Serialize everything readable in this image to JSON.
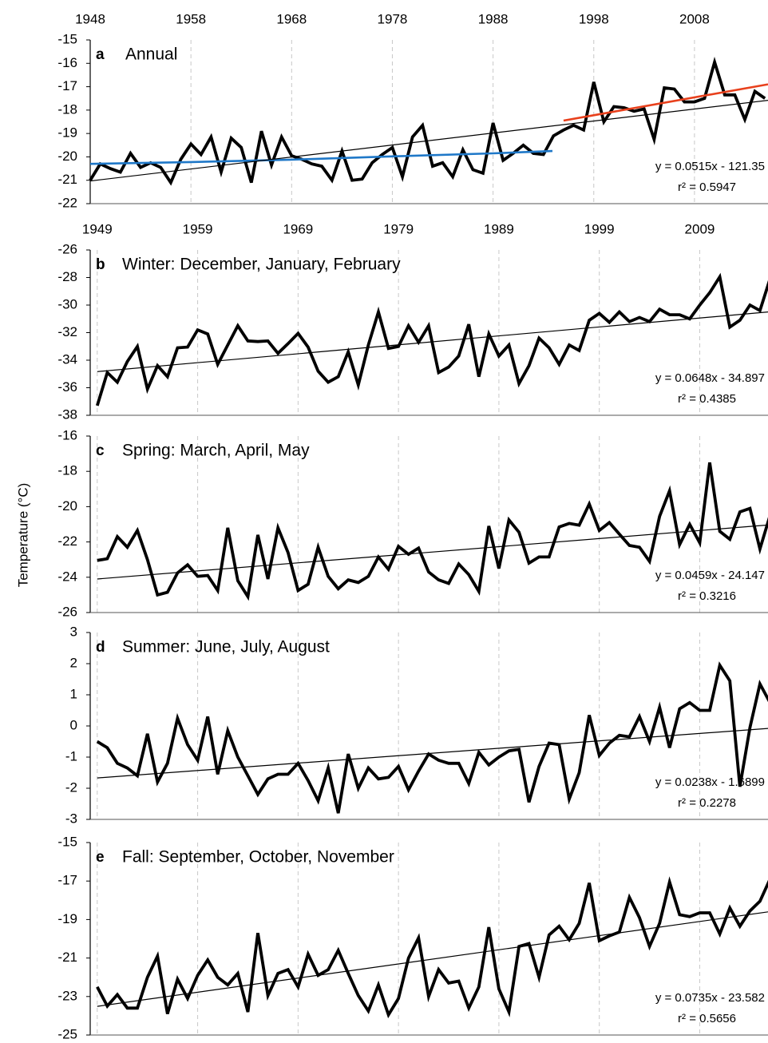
{
  "y_axis_label": "Temperature (°C)",
  "chart_data": [
    {
      "type": "line",
      "label": "a",
      "title": "Annual",
      "xlim": [
        1948,
        2015.3
      ],
      "xticks": [
        1948,
        1958,
        1968,
        1978,
        1988,
        1998,
        2008
      ],
      "ylim": [
        -22,
        -15
      ],
      "yticks": [
        -22,
        -21,
        -20,
        -19,
        -18,
        -17,
        -16,
        -15
      ],
      "grid": true,
      "series": [
        {
          "color": "#000000",
          "x": [
            1948,
            1949,
            1950,
            1951,
            1952,
            1953,
            1954,
            1955,
            1956,
            1957,
            1958,
            1959,
            1960,
            1961,
            1962,
            1963,
            1964,
            1965,
            1966,
            1967,
            1968,
            1969,
            1970,
            1971,
            1972,
            1973,
            1974,
            1975,
            1976,
            1977,
            1978,
            1979,
            1980,
            1981,
            1982,
            1983,
            1984,
            1985,
            1986,
            1987,
            1988,
            1989,
            1990,
            1991,
            1992,
            1993,
            1994,
            1995,
            1996,
            1997,
            1998,
            1999,
            2000,
            2001,
            2002,
            2003,
            2004,
            2005,
            2006,
            2007,
            2008,
            2009,
            2010,
            2011,
            2012,
            2013,
            2014,
            2015
          ],
          "values": [
            -21.0,
            -20.3,
            -20.5,
            -20.65,
            -19.85,
            -20.45,
            -20.25,
            -20.45,
            -21.1,
            -20.1,
            -19.45,
            -19.9,
            -19.15,
            -20.65,
            -19.2,
            -19.6,
            -21.1,
            -18.9,
            -20.35,
            -19.15,
            -19.95,
            -20.1,
            -20.3,
            -20.4,
            -21.0,
            -19.75,
            -21.0,
            -20.95,
            -20.25,
            -19.9,
            -19.6,
            -20.85,
            -19.15,
            -18.65,
            -20.4,
            -20.25,
            -20.85,
            -19.7,
            -20.55,
            -20.7,
            -18.55,
            -20.15,
            -19.85,
            -19.5,
            -19.85,
            -19.9,
            -19.1,
            -18.85,
            -18.65,
            -18.85,
            -16.8,
            -18.5,
            -17.85,
            -17.9,
            -18.05,
            -17.95,
            -19.25,
            -17.05,
            -17.1,
            -17.65,
            -17.65,
            -17.5,
            -15.95,
            -17.35,
            -17.35,
            -18.4,
            -17.2,
            -17.5
          ]
        },
        {
          "color": "#1f78c8",
          "x": [
            1948,
            1958,
            1968,
            1978,
            1988,
            1993.9
          ],
          "values": [
            -20.3,
            -20.22,
            -20.12,
            -19.98,
            -19.85,
            -19.75
          ]
        },
        {
          "color": "#e8401c",
          "x": [
            1995,
            2015.3
          ],
          "values": [
            -18.45,
            -16.9
          ]
        },
        {
          "color": "#000000",
          "x": [
            1948,
            2015.3
          ],
          "values": [
            -21.03,
            -17.58
          ],
          "equation": "y = 0.0515x - 121.35",
          "r2": "r² = 0.5947"
        }
      ]
    },
    {
      "type": "line",
      "label": "b",
      "title": "Winter: December, January, February",
      "xlim": [
        1948.3,
        2015.8
      ],
      "xticks": [
        1949,
        1959,
        1969,
        1979,
        1989,
        1999,
        2009
      ],
      "ylim": [
        -38,
        -26
      ],
      "yticks": [
        -38,
        -36,
        -34,
        -32,
        -30,
        -28,
        -26
      ],
      "grid": true,
      "series": [
        {
          "color": "#000000",
          "x": [
            1949,
            1950,
            1951,
            1952,
            1953,
            1954,
            1955,
            1956,
            1957,
            1958,
            1959,
            1960,
            1961,
            1962,
            1963,
            1964,
            1965,
            1966,
            1967,
            1968,
            1969,
            1970,
            1971,
            1972,
            1973,
            1974,
            1975,
            1976,
            1977,
            1978,
            1979,
            1980,
            1981,
            1982,
            1983,
            1984,
            1985,
            1986,
            1987,
            1988,
            1989,
            1990,
            1991,
            1992,
            1993,
            1994,
            1995,
            1996,
            1997,
            1998,
            1999,
            2000,
            2001,
            2002,
            2003,
            2004,
            2005,
            2006,
            2007,
            2008,
            2009,
            2010,
            2011,
            2012,
            2013,
            2014,
            2015,
            2016
          ],
          "values": [
            -37.3,
            -34.9,
            -35.6,
            -34.1,
            -33.0,
            -36.1,
            -34.4,
            -35.2,
            -33.1,
            -33.05,
            -31.8,
            -32.1,
            -34.3,
            -32.9,
            -31.5,
            -32.6,
            -32.65,
            -32.6,
            -33.5,
            -32.8,
            -32.05,
            -33.05,
            -34.8,
            -35.6,
            -35.2,
            -33.4,
            -35.8,
            -32.9,
            -30.5,
            -33.15,
            -33.0,
            -31.5,
            -32.7,
            -31.5,
            -34.9,
            -34.5,
            -33.7,
            -31.4,
            -35.2,
            -32.1,
            -33.7,
            -32.9,
            -35.7,
            -34.4,
            -32.4,
            -33.1,
            -34.3,
            -32.9,
            -33.3,
            -31.1,
            -30.6,
            -31.25,
            -30.5,
            -31.2,
            -30.9,
            -31.2,
            -30.3,
            -30.7,
            -30.7,
            -31.0,
            -30.0,
            -29.1,
            -27.95,
            -31.6,
            -31.1,
            -30.0,
            -30.4,
            -28.1
          ]
        },
        {
          "color": "#000000",
          "x": [
            1949,
            2015.8
          ],
          "values": [
            -34.83,
            -30.5
          ],
          "equation": "y = 0.0648x - 34.897",
          "r2": "r² = 0.4385"
        }
      ]
    },
    {
      "type": "line",
      "label": "c",
      "title": "Spring: March, April, May",
      "xlim": [
        1948.3,
        2015.8
      ],
      "ylim": [
        -26,
        -16
      ],
      "yticks": [
        -26,
        -24,
        -22,
        -20,
        -18,
        -16
      ],
      "grid": true,
      "series": [
        {
          "color": "#000000",
          "x": [
            1949,
            1950,
            1951,
            1952,
            1953,
            1954,
            1955,
            1956,
            1957,
            1958,
            1959,
            1960,
            1961,
            1962,
            1963,
            1964,
            1965,
            1966,
            1967,
            1968,
            1969,
            1970,
            1971,
            1972,
            1973,
            1974,
            1975,
            1976,
            1977,
            1978,
            1979,
            1980,
            1981,
            1982,
            1983,
            1984,
            1985,
            1986,
            1987,
            1988,
            1989,
            1990,
            1991,
            1992,
            1993,
            1994,
            1995,
            1996,
            1997,
            1998,
            1999,
            2000,
            2001,
            2002,
            2003,
            2004,
            2005,
            2006,
            2007,
            2008,
            2009,
            2010,
            2011,
            2012,
            2013,
            2014,
            2015,
            2016
          ],
          "values": [
            -23.05,
            -22.95,
            -21.7,
            -22.3,
            -21.35,
            -23.0,
            -25.0,
            -24.85,
            -23.75,
            -23.3,
            -23.95,
            -23.9,
            -24.75,
            -21.2,
            -24.2,
            -25.1,
            -21.6,
            -24.1,
            -21.2,
            -22.6,
            -24.75,
            -24.4,
            -22.3,
            -23.95,
            -24.65,
            -24.15,
            -24.3,
            -23.95,
            -22.85,
            -23.55,
            -22.25,
            -22.7,
            -22.35,
            -23.7,
            -24.15,
            -24.35,
            -23.25,
            -23.85,
            -24.8,
            -21.1,
            -23.5,
            -20.75,
            -21.45,
            -23.2,
            -22.85,
            -22.85,
            -21.15,
            -20.95,
            -21.05,
            -19.85,
            -21.35,
            -20.9,
            -21.55,
            -22.2,
            -22.3,
            -23.1,
            -20.55,
            -19.1,
            -22.15,
            -21.0,
            -22.05,
            -17.5,
            -21.4,
            -21.85,
            -20.3,
            -20.1,
            -22.4,
            -20.5
          ]
        },
        {
          "color": "#000000",
          "x": [
            1949,
            2015.8
          ],
          "values": [
            -24.1,
            -21.04
          ],
          "equation": "y = 0.0459x - 24.147",
          "r2": "r² = 0.3216"
        }
      ]
    },
    {
      "type": "line",
      "label": "d",
      "title": "Summer: June, July, August",
      "xlim": [
        1948.3,
        2015.8
      ],
      "ylim": [
        -3,
        3
      ],
      "yticks": [
        -3,
        -2,
        -1,
        0,
        1,
        2,
        3
      ],
      "grid": true,
      "series": [
        {
          "color": "#000000",
          "x": [
            1949,
            1950,
            1951,
            1952,
            1953,
            1954,
            1955,
            1956,
            1957,
            1958,
            1959,
            1960,
            1961,
            1962,
            1963,
            1964,
            1965,
            1966,
            1967,
            1968,
            1969,
            1970,
            1971,
            1972,
            1973,
            1974,
            1975,
            1976,
            1977,
            1978,
            1979,
            1980,
            1981,
            1982,
            1983,
            1984,
            1985,
            1986,
            1987,
            1988,
            1989,
            1990,
            1991,
            1992,
            1993,
            1994,
            1995,
            1996,
            1997,
            1998,
            1999,
            2000,
            2001,
            2002,
            2003,
            2004,
            2005,
            2006,
            2007,
            2008,
            2009,
            2010,
            2011,
            2012,
            2013,
            2014,
            2015,
            2016
          ],
          "values": [
            -0.5,
            -0.7,
            -1.2,
            -1.35,
            -1.6,
            -0.25,
            -1.8,
            -1.2,
            0.25,
            -0.6,
            -1.1,
            0.3,
            -1.55,
            -0.15,
            -1.0,
            -1.6,
            -2.2,
            -1.7,
            -1.55,
            -1.55,
            -1.2,
            -1.75,
            -2.4,
            -1.35,
            -2.8,
            -0.9,
            -2.0,
            -1.35,
            -1.7,
            -1.65,
            -1.3,
            -2.05,
            -1.45,
            -0.9,
            -1.1,
            -1.2,
            -1.2,
            -1.85,
            -0.85,
            -1.25,
            -1.0,
            -0.8,
            -0.75,
            -2.45,
            -1.3,
            -0.55,
            -0.6,
            -2.35,
            -1.5,
            0.35,
            -0.95,
            -0.55,
            -0.3,
            -0.35,
            0.3,
            -0.5,
            0.6,
            -0.7,
            0.55,
            0.75,
            0.5,
            0.5,
            1.95,
            1.45,
            -1.95,
            -0.05,
            1.35,
            0.75
          ]
        },
        {
          "color": "#000000",
          "x": [
            1949,
            2015.8
          ],
          "values": [
            -1.67,
            -0.08
          ],
          "equation": "y = 0.0238x - 1.6899",
          "r2": "r² = 0.2278"
        }
      ]
    },
    {
      "type": "line",
      "label": "e",
      "title": "Fall: September, October, November",
      "xlim": [
        1948.3,
        2015.8
      ],
      "ylim": [
        -25,
        -15
      ],
      "yticks": [
        -25,
        -23,
        -21,
        -19,
        -17,
        -15
      ],
      "grid": true,
      "series": [
        {
          "color": "#000000",
          "x": [
            1949,
            1950,
            1951,
            1952,
            1953,
            1954,
            1955,
            1956,
            1957,
            1958,
            1959,
            1960,
            1961,
            1962,
            1963,
            1964,
            1965,
            1966,
            1967,
            1968,
            1969,
            1970,
            1971,
            1972,
            1973,
            1974,
            1975,
            1976,
            1977,
            1978,
            1979,
            1980,
            1981,
            1982,
            1983,
            1984,
            1985,
            1986,
            1987,
            1988,
            1989,
            1990,
            1991,
            1992,
            1993,
            1994,
            1995,
            1996,
            1997,
            1998,
            1999,
            2000,
            2001,
            2002,
            2003,
            2004,
            2005,
            2006,
            2007,
            2008,
            2009,
            2010,
            2011,
            2012,
            2013,
            2014,
            2015,
            2016
          ],
          "values": [
            -22.5,
            -23.5,
            -22.9,
            -23.6,
            -23.6,
            -22.0,
            -20.9,
            -23.9,
            -22.1,
            -23.1,
            -21.9,
            -21.1,
            -22.0,
            -22.4,
            -21.8,
            -23.8,
            -19.7,
            -22.95,
            -21.8,
            -21.6,
            -22.5,
            -20.8,
            -21.9,
            -21.6,
            -20.6,
            -21.8,
            -22.95,
            -23.75,
            -22.4,
            -23.95,
            -23.1,
            -21.0,
            -19.95,
            -23.0,
            -21.6,
            -22.3,
            -22.2,
            -23.6,
            -22.5,
            -19.4,
            -22.6,
            -23.8,
            -20.4,
            -20.25,
            -22.0,
            -19.8,
            -19.35,
            -20.05,
            -19.2,
            -17.1,
            -20.1,
            -19.85,
            -19.65,
            -17.85,
            -18.9,
            -20.4,
            -19.2,
            -17.05,
            -18.75,
            -18.85,
            -18.65,
            -18.65,
            -19.75,
            -18.4,
            -19.35,
            -18.55,
            -18.05,
            -16.9
          ]
        },
        {
          "color": "#000000",
          "x": [
            1949,
            2015.8
          ],
          "values": [
            -23.51,
            -18.6
          ],
          "equation": "y = 0.0735x - 23.582",
          "r2": "r² = 0.5656"
        }
      ]
    }
  ]
}
